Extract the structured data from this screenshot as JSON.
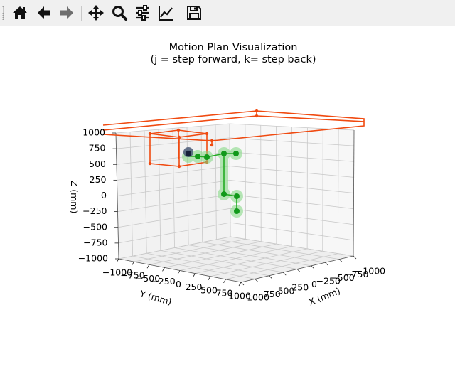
{
  "toolbar": {
    "buttons": [
      {
        "name": "home-icon"
      },
      {
        "name": "back-arrow-icon"
      },
      {
        "name": "forward-arrow-icon"
      },
      {
        "name": "pan-move-icon"
      },
      {
        "name": "zoom-magnifier-icon"
      },
      {
        "name": "configure-subplots-icon"
      },
      {
        "name": "edit-axis-curve-icon"
      },
      {
        "name": "save-floppy-icon"
      }
    ]
  },
  "plot": {
    "title_line1": "Motion Plan Visualization",
    "title_line2": "(j = step forward, k= step back)",
    "zlabel": "Z (mm)",
    "ylabel": "Y (mm)",
    "xlabel": "X (mm)",
    "z_ticks": [
      "1000",
      "750",
      "500",
      "250",
      "0",
      "−250",
      "−500",
      "−750",
      "−1000"
    ],
    "y_ticks": [
      "−1000",
      "−750",
      "−500",
      "−250",
      "0",
      "250",
      "500",
      "750",
      "1000"
    ],
    "x_ticks": [
      "1000",
      "750",
      "500",
      "250",
      "0",
      "−250",
      "−500",
      "−750",
      "−1000"
    ],
    "colors": {
      "obstacle": "#f04a10",
      "path": "#22aa22",
      "path_glow": "#7fd87f",
      "robot": "#4a5a78",
      "grid": "#c8c8c8",
      "pane": "#f2f2f2"
    }
  }
}
